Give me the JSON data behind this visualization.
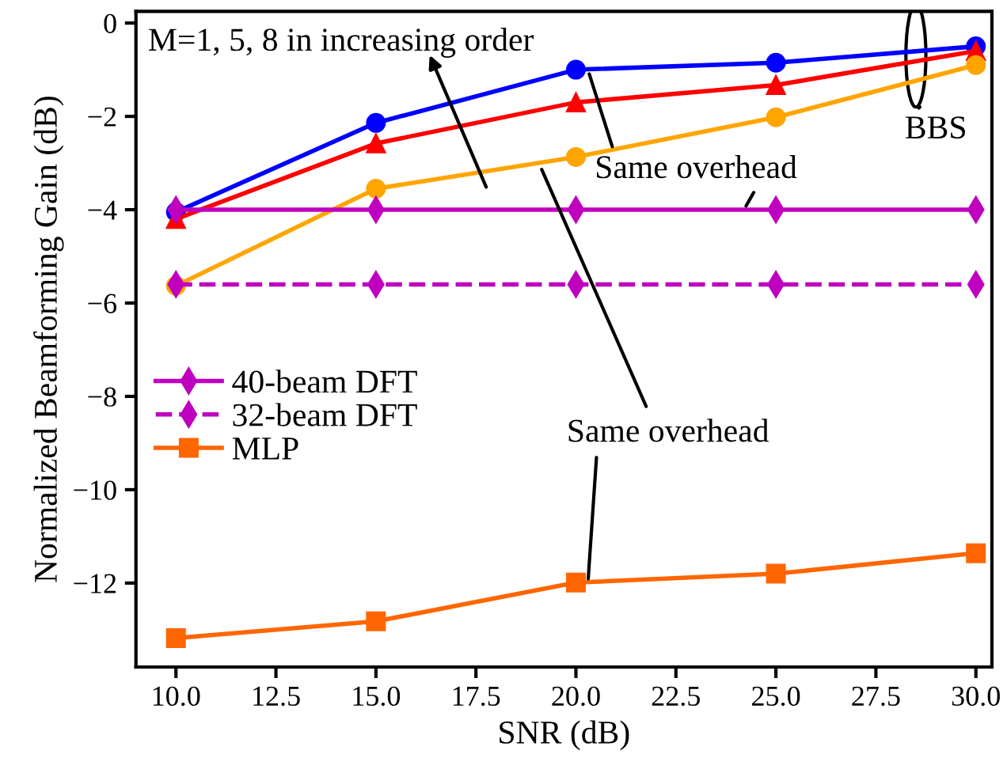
{
  "chart_data": {
    "type": "line",
    "xlabel": "SNR (dB)",
    "ylabel": "Normalized Beamforming Gain (dB)",
    "x": [
      10,
      15,
      20,
      25,
      30
    ],
    "series": [
      {
        "color": "#0000ff",
        "marker": "circle",
        "line_style": "solid",
        "values": [
          -4.05,
          -2.14,
          -1.0,
          -0.85,
          -0.5
        ]
      },
      {
        "color": "#ff0000",
        "marker": "triangle",
        "line_style": "solid",
        "values": [
          -4.2,
          -2.58,
          -1.7,
          -1.33,
          -0.6
        ]
      },
      {
        "color": "#ffa500",
        "marker": "circle",
        "line_style": "solid",
        "values": [
          -5.63,
          -3.55,
          -2.87,
          -2.02,
          -0.9
        ]
      },
      {
        "name": "40-beam DFT",
        "color": "#bf00bf",
        "marker": "diamond",
        "line_style": "solid",
        "values": [
          -4.0,
          -4.0,
          -4.0,
          -4.0,
          -4.0
        ]
      },
      {
        "name": "32-beam DFT",
        "color": "#bf00bf",
        "marker": "diamond",
        "line_style": "dashed",
        "values": [
          -5.6,
          -5.6,
          -5.6,
          -5.6,
          -5.6
        ]
      },
      {
        "name": "MLP",
        "color": "#ff6600",
        "marker": "square",
        "line_style": "solid",
        "values": [
          -13.18,
          -12.82,
          -11.99,
          -11.8,
          -11.36
        ]
      }
    ],
    "xlim": [
      9,
      30.4
    ],
    "ylim": [
      -13.8,
      0.25
    ],
    "xticks": [
      {
        "value": 10,
        "label": "10.0"
      },
      {
        "value": 12.5,
        "label": "12.5"
      },
      {
        "value": 15,
        "label": "15.0"
      },
      {
        "value": 17.5,
        "label": "17.5"
      },
      {
        "value": 20,
        "label": "20.0"
      },
      {
        "value": 22.5,
        "label": "22.5"
      },
      {
        "value": 25,
        "label": "25.0"
      },
      {
        "value": 27.5,
        "label": "27.5"
      },
      {
        "value": 30,
        "label": "30.0"
      }
    ],
    "yticks": [
      0,
      -2,
      -4,
      -6,
      -8,
      -10,
      -12
    ],
    "grid": false,
    "legend": "left",
    "annotations": [
      {
        "text": "M=1, 5, 8 in increasing order"
      },
      {
        "text": "Same overhead",
        "x": 20.3,
        "y": -1.0
      },
      "BBS",
      {
        "text": "Same overhead",
        "x": 20.3,
        "y": -12.0
      }
    ]
  }
}
